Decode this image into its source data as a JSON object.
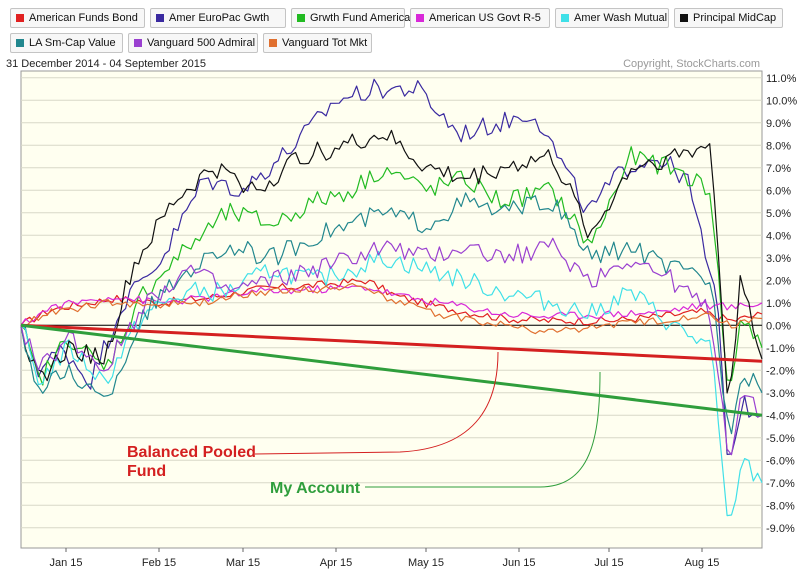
{
  "header": {
    "date_range": "31 December 2014 - 04 September 2015",
    "copyright": "Copyright, StockCharts.com"
  },
  "chart_data": {
    "type": "line",
    "x_tick_labels": [
      "Jan 15",
      "Feb 15",
      "Mar 15",
      "Apr 15",
      "May 15",
      "Jun 15",
      "Jul 15",
      "Aug 15"
    ],
    "y_tick_labels": [
      "11.0%",
      "10.0%",
      "9.0%",
      "8.0%",
      "7.0%",
      "6.0%",
      "5.0%",
      "4.0%",
      "3.0%",
      "2.0%",
      "1.0%",
      "0.0%",
      "-1.0%",
      "-2.0%",
      "-3.0%",
      "-4.0%",
      "-5.0%",
      "-6.0%",
      "-7.0%",
      "-8.0%",
      "-9.0%"
    ],
    "ylim": [
      -9.9,
      11.3
    ],
    "x_range": [
      "2014-12-31",
      "2015-09-04"
    ],
    "grid": true,
    "legend_position": "top",
    "series": [
      {
        "name": "American Funds Bond",
        "color": "#e02020",
        "style": "noisy",
        "keypoints": [
          [
            "2014-12-31",
            0
          ],
          [
            "2015-01-10",
            0.7
          ],
          [
            "2015-01-31",
            1.2
          ],
          [
            "2015-02-15",
            1.0
          ],
          [
            "2015-03-02",
            1.2
          ],
          [
            "2015-03-20",
            1.6
          ],
          [
            "2015-04-10",
            1.8
          ],
          [
            "2015-04-25",
            2.0
          ],
          [
            "2015-05-05",
            1.3
          ],
          [
            "2015-05-20",
            0.8
          ],
          [
            "2015-06-10",
            0.3
          ],
          [
            "2015-06-25",
            0.2
          ],
          [
            "2015-07-15",
            0.2
          ],
          [
            "2015-08-01",
            0.4
          ],
          [
            "2015-08-15",
            0.6
          ],
          [
            "2015-08-25",
            0.2
          ],
          [
            "2015-09-04",
            0.5
          ]
        ]
      },
      {
        "name": "Amer EuroPac Gwth",
        "color": "#3a2aa0",
        "style": "noisy",
        "keypoints": [
          [
            "2014-12-31",
            0
          ],
          [
            "2015-01-06",
            -2.0
          ],
          [
            "2015-01-14",
            -1.0
          ],
          [
            "2015-01-23",
            -2.5
          ],
          [
            "2015-02-03",
            1.0
          ],
          [
            "2015-02-16",
            3.0
          ],
          [
            "2015-03-02",
            6.5
          ],
          [
            "2015-03-15",
            6.0
          ],
          [
            "2015-04-01",
            8.0
          ],
          [
            "2015-04-15",
            10.0
          ],
          [
            "2015-04-28",
            10.5
          ],
          [
            "2015-05-12",
            10.5
          ],
          [
            "2015-05-26",
            8.5
          ],
          [
            "2015-06-09",
            9.0
          ],
          [
            "2015-06-20",
            9.5
          ],
          [
            "2015-07-08",
            5.0
          ],
          [
            "2015-07-20",
            7.0
          ],
          [
            "2015-07-31",
            7.5
          ],
          [
            "2015-08-10",
            6.5
          ],
          [
            "2015-08-20",
            1.0
          ],
          [
            "2015-08-24",
            -6.5
          ],
          [
            "2015-08-28",
            -3.5
          ],
          [
            "2015-09-04",
            -4.0
          ]
        ]
      },
      {
        "name": "Grwth Fund America",
        "color": "#22bb22",
        "style": "noisy",
        "keypoints": [
          [
            "2014-12-31",
            0
          ],
          [
            "2015-01-06",
            -2.5
          ],
          [
            "2015-01-16",
            -0.5
          ],
          [
            "2015-01-28",
            -2.0
          ],
          [
            "2015-02-10",
            1.5
          ],
          [
            "2015-02-25",
            3.5
          ],
          [
            "2015-03-10",
            5.0
          ],
          [
            "2015-03-25",
            4.5
          ],
          [
            "2015-04-08",
            5.5
          ],
          [
            "2015-04-20",
            6.0
          ],
          [
            "2015-05-01",
            7.0
          ],
          [
            "2015-05-15",
            6.0
          ],
          [
            "2015-05-28",
            6.5
          ],
          [
            "2015-06-09",
            5.5
          ],
          [
            "2015-06-26",
            6.0
          ],
          [
            "2015-07-09",
            3.5
          ],
          [
            "2015-07-22",
            7.5
          ],
          [
            "2015-08-05",
            7.0
          ],
          [
            "2015-08-18",
            6.0
          ],
          [
            "2015-08-24",
            -3.5
          ],
          [
            "2015-08-28",
            0.5
          ],
          [
            "2015-09-04",
            -1.0
          ]
        ]
      },
      {
        "name": "American US Govt R-5",
        "color": "#d828d8",
        "style": "noisy",
        "keypoints": [
          [
            "2014-12-31",
            0
          ],
          [
            "2015-01-10",
            0.8
          ],
          [
            "2015-01-31",
            1.3
          ],
          [
            "2015-02-15",
            1.0
          ],
          [
            "2015-03-02",
            1.2
          ],
          [
            "2015-03-20",
            1.5
          ],
          [
            "2015-04-10",
            1.6
          ],
          [
            "2015-04-25",
            1.7
          ],
          [
            "2015-05-10",
            1.2
          ],
          [
            "2015-05-25",
            0.9
          ],
          [
            "2015-06-10",
            0.5
          ],
          [
            "2015-06-25",
            0.4
          ],
          [
            "2015-07-15",
            0.5
          ],
          [
            "2015-08-01",
            0.6
          ],
          [
            "2015-08-15",
            0.9
          ],
          [
            "2015-08-25",
            0.8
          ],
          [
            "2015-09-04",
            1.0
          ]
        ]
      },
      {
        "name": "Amer Wash Mutual",
        "color": "#40e0e8",
        "style": "noisy",
        "keypoints": [
          [
            "2014-12-31",
            0
          ],
          [
            "2015-01-06",
            -2.5
          ],
          [
            "2015-01-16",
            -1.0
          ],
          [
            "2015-01-28",
            -2.5
          ],
          [
            "2015-02-10",
            0.5
          ],
          [
            "2015-02-25",
            1.5
          ],
          [
            "2015-03-10",
            1.5
          ],
          [
            "2015-03-25",
            2.5
          ],
          [
            "2015-04-08",
            2.0
          ],
          [
            "2015-04-20",
            2.5
          ],
          [
            "2015-05-01",
            3.0
          ],
          [
            "2015-05-15",
            2.5
          ],
          [
            "2015-05-28",
            2.0
          ],
          [
            "2015-06-09",
            1.5
          ],
          [
            "2015-06-26",
            1.0
          ],
          [
            "2015-07-09",
            0.5
          ],
          [
            "2015-07-22",
            1.5
          ],
          [
            "2015-08-05",
            0.0
          ],
          [
            "2015-08-18",
            -1.0
          ],
          [
            "2015-08-24",
            -9.5
          ],
          [
            "2015-08-28",
            -6.0
          ],
          [
            "2015-09-04",
            -7.0
          ]
        ]
      },
      {
        "name": "Principal MidCap",
        "color": "#111111",
        "style": "noisy",
        "keypoints": [
          [
            "2014-12-31",
            0
          ],
          [
            "2015-01-06",
            -2.5
          ],
          [
            "2015-01-16",
            -1.0
          ],
          [
            "2015-01-28",
            -1.5
          ],
          [
            "2015-02-06",
            2.5
          ],
          [
            "2015-02-20",
            5.5
          ],
          [
            "2015-03-05",
            7.0
          ],
          [
            "2015-03-20",
            6.0
          ],
          [
            "2015-04-03",
            7.5
          ],
          [
            "2015-04-18",
            8.0
          ],
          [
            "2015-05-01",
            8.5
          ],
          [
            "2015-05-15",
            7.0
          ],
          [
            "2015-05-28",
            6.5
          ],
          [
            "2015-06-09",
            7.0
          ],
          [
            "2015-06-26",
            7.5
          ],
          [
            "2015-07-09",
            4.0
          ],
          [
            "2015-07-22",
            7.0
          ],
          [
            "2015-08-05",
            7.5
          ],
          [
            "2015-08-18",
            8.0
          ],
          [
            "2015-08-24",
            -4.0
          ],
          [
            "2015-08-28",
            2.5
          ],
          [
            "2015-09-04",
            -1.5
          ]
        ]
      },
      {
        "name": "LA Sm-Cap Value",
        "color": "#22878e",
        "style": "noisy",
        "keypoints": [
          [
            "2014-12-31",
            0
          ],
          [
            "2015-01-06",
            -3.0
          ],
          [
            "2015-01-16",
            -2.0
          ],
          [
            "2015-01-28",
            -3.5
          ],
          [
            "2015-02-10",
            0.5
          ],
          [
            "2015-02-25",
            2.5
          ],
          [
            "2015-03-10",
            3.5
          ],
          [
            "2015-03-25",
            3.0
          ],
          [
            "2015-04-08",
            4.0
          ],
          [
            "2015-04-20",
            4.5
          ],
          [
            "2015-05-01",
            5.0
          ],
          [
            "2015-05-15",
            4.5
          ],
          [
            "2015-05-28",
            5.5
          ],
          [
            "2015-06-09",
            5.0
          ],
          [
            "2015-06-26",
            5.5
          ],
          [
            "2015-07-09",
            3.0
          ],
          [
            "2015-07-22",
            3.5
          ],
          [
            "2015-08-05",
            2.5
          ],
          [
            "2015-08-18",
            2.0
          ],
          [
            "2015-08-24",
            -5.0
          ],
          [
            "2015-08-28",
            -2.0
          ],
          [
            "2015-09-04",
            -3.0
          ]
        ]
      },
      {
        "name": "Vanguard 500 Admiral",
        "color": "#9a40d0",
        "style": "noisy",
        "keypoints": [
          [
            "2014-12-31",
            0
          ],
          [
            "2015-01-06",
            -2.0
          ],
          [
            "2015-01-16",
            -0.5
          ],
          [
            "2015-01-28",
            -2.0
          ],
          [
            "2015-02-10",
            1.0
          ],
          [
            "2015-02-25",
            2.5
          ],
          [
            "2015-03-10",
            1.5
          ],
          [
            "2015-03-25",
            2.0
          ],
          [
            "2015-04-08",
            2.5
          ],
          [
            "2015-04-20",
            3.0
          ],
          [
            "2015-05-01",
            3.5
          ],
          [
            "2015-05-15",
            3.0
          ],
          [
            "2015-05-28",
            3.5
          ],
          [
            "2015-06-09",
            3.0
          ],
          [
            "2015-06-26",
            3.5
          ],
          [
            "2015-07-09",
            2.0
          ],
          [
            "2015-07-22",
            3.0
          ],
          [
            "2015-08-05",
            2.0
          ],
          [
            "2015-08-18",
            0.5
          ],
          [
            "2015-08-24",
            -6.0
          ],
          [
            "2015-08-28",
            -3.0
          ],
          [
            "2015-09-04",
            -4.0
          ]
        ]
      },
      {
        "name": "Vanguard Tot Mkt",
        "color": "#e07030",
        "style": "noisy",
        "keypoints": [
          [
            "2014-12-31",
            0
          ],
          [
            "2015-01-10",
            0.6
          ],
          [
            "2015-01-31",
            1.0
          ],
          [
            "2015-02-15",
            0.9
          ],
          [
            "2015-03-02",
            1.0
          ],
          [
            "2015-03-20",
            1.5
          ],
          [
            "2015-04-10",
            1.6
          ],
          [
            "2015-04-25",
            1.8
          ],
          [
            "2015-05-05",
            1.0
          ],
          [
            "2015-05-20",
            0.5
          ],
          [
            "2015-06-10",
            0.0
          ],
          [
            "2015-06-25",
            -0.3
          ],
          [
            "2015-07-15",
            0.0
          ],
          [
            "2015-08-01",
            0.2
          ],
          [
            "2015-08-15",
            0.5
          ],
          [
            "2015-08-25",
            0.0
          ],
          [
            "2015-09-04",
            0.3
          ]
        ]
      }
    ],
    "overlays": [
      {
        "label": "Balanced Pooled Fund",
        "color": "#d42020",
        "line_start": [
          "2014-12-31",
          0
        ],
        "line_end": [
          "2015-09-04",
          -1.6
        ]
      },
      {
        "label": "My Account",
        "color": "#2f9e3c",
        "line_start": [
          "2014-12-31",
          0
        ],
        "line_end": [
          "2015-09-04",
          -4.0
        ]
      }
    ]
  }
}
